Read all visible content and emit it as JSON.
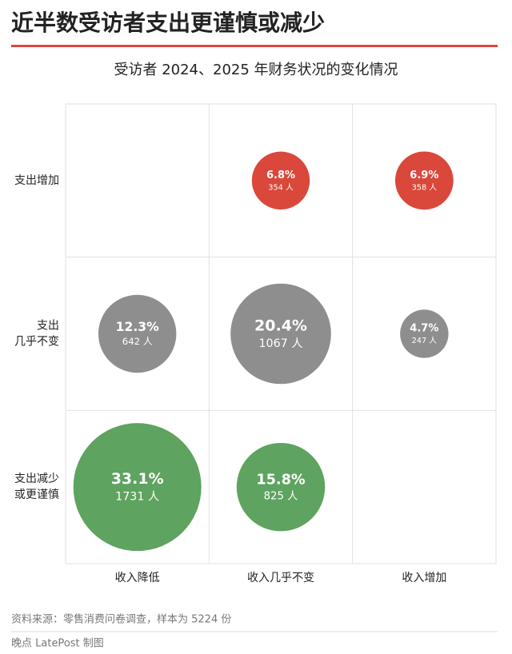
{
  "chart_data": {
    "type": "bubble",
    "title": "近半数受访者支出更谨慎或减少",
    "subtitle": "受访者 2024、2025 年财务状况的变化情况",
    "categories": [
      "收入降低",
      "收入几乎不变",
      "收入增加"
    ],
    "rows": [
      [
        "支出增加"
      ],
      [
        "支出",
        "几乎不变"
      ],
      [
        "支出减少",
        "或更谨慎"
      ]
    ],
    "row_colors": [
      "#d9483a",
      "#8e8e8e",
      "#5ea35f"
    ],
    "values": [
      [
        null,
        6.8,
        6.9
      ],
      [
        12.3,
        20.4,
        4.7
      ],
      [
        33.1,
        15.8,
        null
      ]
    ],
    "value_labels": [
      [
        null,
        "6.8%",
        "6.9%"
      ],
      [
        "12.3%",
        "20.4%",
        "4.7%"
      ],
      [
        "33.1%",
        "15.8%",
        null
      ]
    ],
    "counts": [
      [
        null,
        354,
        358
      ],
      [
        642,
        1067,
        247
      ],
      [
        1731,
        825,
        null
      ]
    ],
    "count_labels": [
      [
        null,
        "354 人",
        "358 人"
      ],
      [
        "642 人",
        "1067 人",
        "247 人"
      ],
      [
        "1731 人",
        "825 人",
        null
      ]
    ],
    "source": "资料来源：零售消费问卷调查，样本为 5224 份",
    "credit": "晚点 LatePost 制图"
  }
}
